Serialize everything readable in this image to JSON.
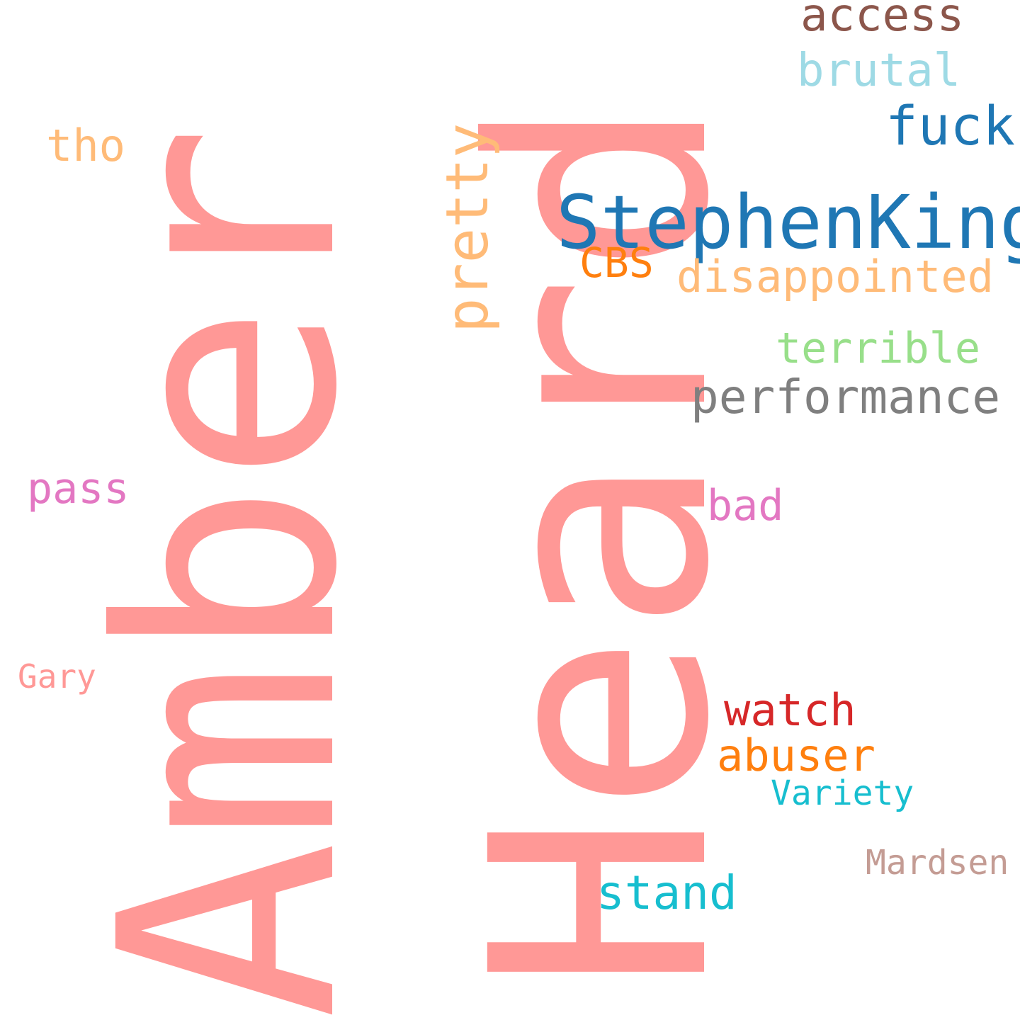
{
  "word_cloud": {
    "words": {
      "amber": {
        "text": "Amber",
        "color": "#ff9896"
      },
      "heard": {
        "text": "Heard",
        "color": "#ff9896"
      },
      "pretty": {
        "text": "pretty",
        "color": "#ffbb78"
      },
      "access": {
        "text": "access",
        "color": "#8c564b"
      },
      "brutal": {
        "text": "brutal",
        "color": "#9edae5"
      },
      "fuck": {
        "text": "fuck",
        "color": "#1f77b4"
      },
      "tho": {
        "text": "tho",
        "color": "#ffbb78"
      },
      "stephenking": {
        "text": "StephenKing",
        "color": "#1f77b4"
      },
      "cbs": {
        "text": "CBS",
        "color": "#ff7f0e"
      },
      "disappointed": {
        "text": "disappointed",
        "color": "#ffbb78"
      },
      "terrible": {
        "text": "terrible",
        "color": "#98df8a"
      },
      "performance": {
        "text": "performance",
        "color": "#7f7f7f"
      },
      "pass": {
        "text": "pass",
        "color": "#e377c2"
      },
      "bad": {
        "text": "bad",
        "color": "#e377c2"
      },
      "gary": {
        "text": "Gary",
        "color": "#ff9896"
      },
      "watch": {
        "text": "watch",
        "color": "#d62728"
      },
      "abuser": {
        "text": "abuser",
        "color": "#ff7f0e"
      },
      "variety": {
        "text": "Variety",
        "color": "#17becf"
      },
      "mardsen": {
        "text": "Mardsen",
        "color": "#c49c94"
      },
      "stand": {
        "text": "stand",
        "color": "#17becf"
      }
    }
  }
}
